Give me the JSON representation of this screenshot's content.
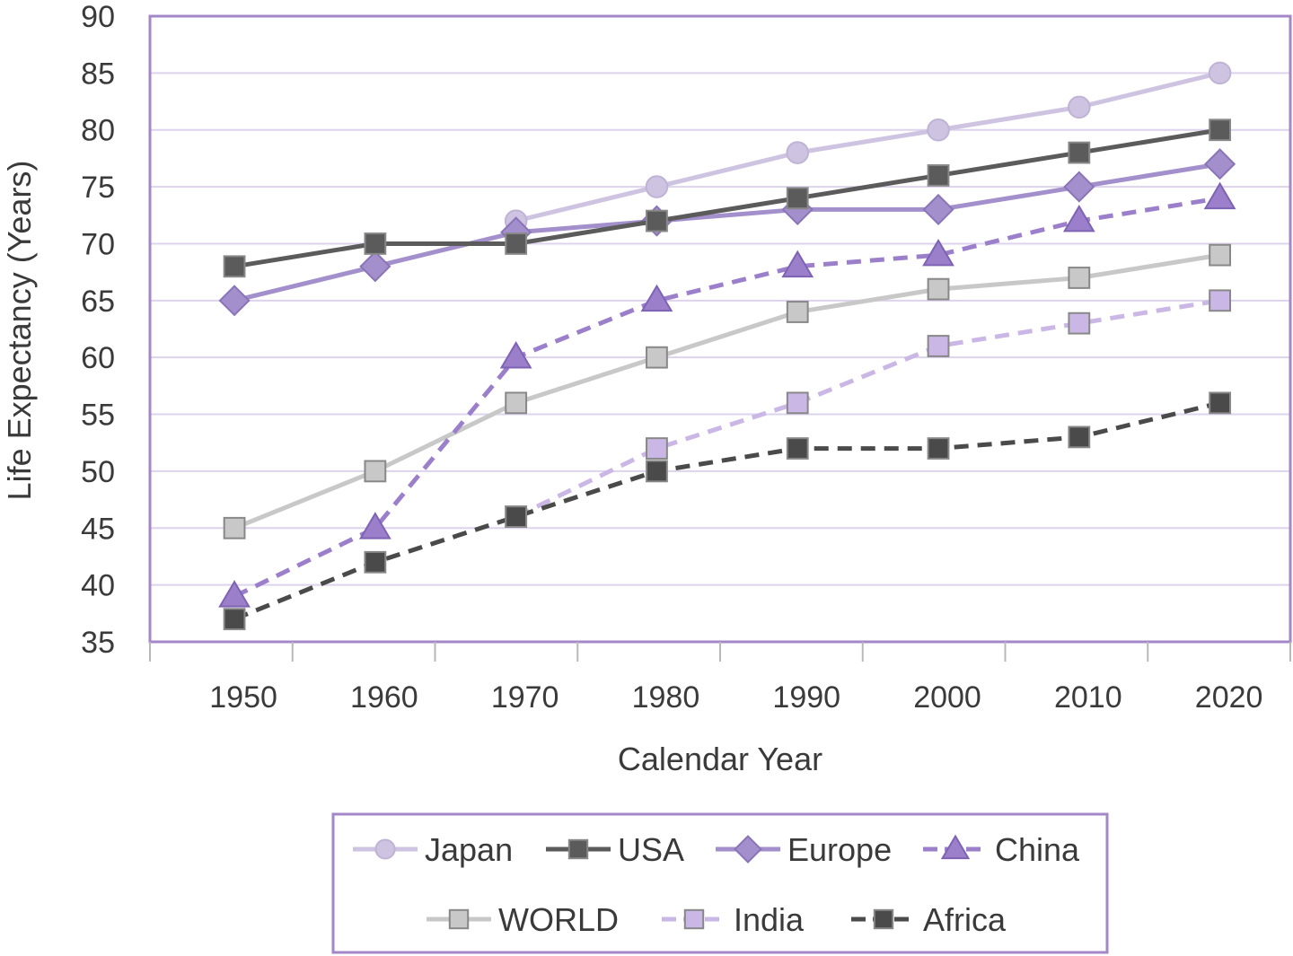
{
  "chart_data": {
    "type": "line",
    "title": "",
    "xlabel": "Calendar Year",
    "ylabel": "Life Expectancy (Years)",
    "categories": [
      "1950",
      "1960",
      "1970",
      "1980",
      "1990",
      "2000",
      "2010",
      "2020"
    ],
    "x": [
      1950,
      1960,
      1970,
      1980,
      1990,
      2000,
      2010,
      2020
    ],
    "ylim": [
      35,
      90
    ],
    "xlim": [
      1944,
      2025
    ],
    "yticks": [
      35,
      40,
      45,
      50,
      55,
      60,
      65,
      70,
      75,
      80,
      85,
      90
    ],
    "grid": true,
    "legend_position": "bottom",
    "series": [
      {
        "name": "Japan",
        "values": [
          null,
          null,
          72,
          75,
          78,
          80,
          82,
          85
        ],
        "color": "#cfc3e2",
        "dash": false,
        "marker": "circle"
      },
      {
        "name": "USA",
        "values": [
          68,
          70,
          70,
          72,
          74,
          76,
          78,
          80
        ],
        "color": "#5b5b5b",
        "dash": false,
        "marker": "square"
      },
      {
        "name": "Europe",
        "values": [
          65,
          68,
          71,
          72,
          73,
          73,
          75,
          77
        ],
        "color": "#a38fcb",
        "dash": false,
        "marker": "diamond"
      },
      {
        "name": "China",
        "values": [
          39,
          45,
          60,
          65,
          68,
          69,
          72,
          74
        ],
        "color": "#9b7fcb",
        "dash": true,
        "marker": "triangle"
      },
      {
        "name": "WORLD",
        "values": [
          45,
          50,
          56,
          60,
          64,
          66,
          67,
          69
        ],
        "color": "#c8c8c8",
        "dash": false,
        "marker": "square"
      },
      {
        "name": "India",
        "values": [
          null,
          null,
          46,
          52,
          56,
          61,
          63,
          65
        ],
        "color": "#cbb7e6",
        "dash": true,
        "marker": "square"
      },
      {
        "name": "Africa",
        "values": [
          37,
          42,
          46,
          50,
          52,
          52,
          53,
          56
        ],
        "color": "#4a4a4a",
        "dash": true,
        "marker": "square"
      }
    ]
  }
}
